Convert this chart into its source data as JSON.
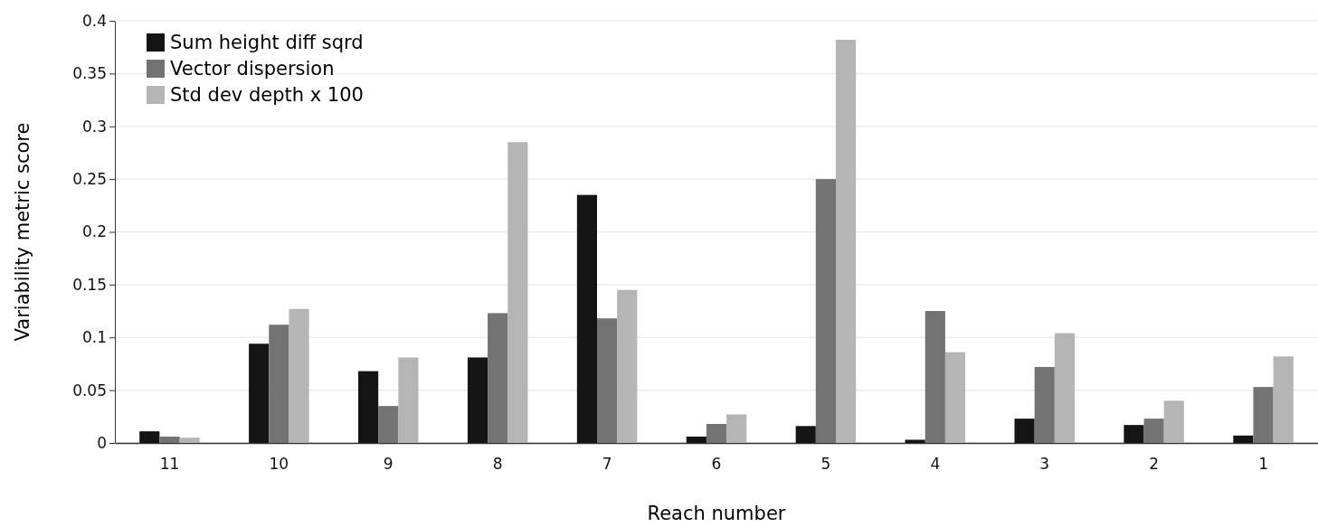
{
  "chart_data": {
    "type": "bar",
    "xlabel": "Reach number",
    "ylabel": "Variability metric score",
    "categories": [
      "11",
      "10",
      "9",
      "8",
      "7",
      "6",
      "5",
      "4",
      "3",
      "2",
      "1"
    ],
    "series": [
      {
        "name": "Sum height diff sqrd",
        "color": "#141414",
        "values": [
          0.011,
          0.094,
          0.068,
          0.081,
          0.235,
          0.006,
          0.016,
          0.003,
          0.023,
          0.017,
          0.007
        ]
      },
      {
        "name": "Vector dispersion",
        "color": "#737373",
        "values": [
          0.006,
          0.112,
          0.035,
          0.123,
          0.118,
          0.018,
          0.25,
          0.125,
          0.072,
          0.023,
          0.053
        ]
      },
      {
        "name": "Std dev depth x 100",
        "color": "#b5b5b5",
        "values": [
          0.005,
          0.127,
          0.081,
          0.285,
          0.145,
          0.027,
          0.382,
          0.086,
          0.104,
          0.04,
          0.082
        ]
      }
    ],
    "ylim": [
      0,
      0.4
    ],
    "yticks": [
      0,
      0.05,
      0.1,
      0.15,
      0.2,
      0.25,
      0.3,
      0.35,
      0.4
    ],
    "grid": "y",
    "legend": "top left"
  }
}
